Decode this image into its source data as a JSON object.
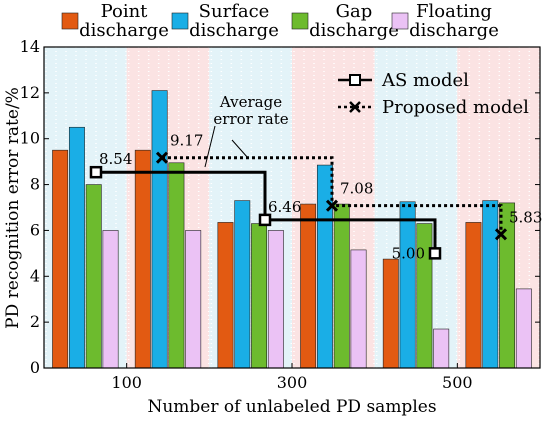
{
  "chart_data": {
    "type": "bar",
    "xlabel": "Number of unlabeled PD samples",
    "ylabel": "PD recognition error rate/%",
    "ylim": [
      0,
      14
    ],
    "yticks": [
      0,
      2,
      4,
      6,
      8,
      10,
      12,
      14
    ],
    "groups": [
      "100",
      "300",
      "500"
    ],
    "grid": false,
    "bar_legend_placement": "top",
    "line_legend_placement": "top-right",
    "bar_series": [
      {
        "name": "Point discharge",
        "name_lines": [
          "Point",
          "discharge"
        ],
        "color": "#e25a12",
        "values": [
          [
            9.5,
            9.5
          ],
          [
            6.35,
            7.15
          ],
          [
            4.75,
            6.35
          ]
        ]
      },
      {
        "name": "Surface discharge",
        "name_lines": [
          "Surface",
          "discharge"
        ],
        "color": "#1aaee6",
        "values": [
          [
            10.5,
            12.1
          ],
          [
            7.3,
            8.85
          ],
          [
            7.25,
            7.3
          ]
        ]
      },
      {
        "name": "Gap discharge",
        "name_lines": [
          "Gap",
          "discharge"
        ],
        "color": "#6dbb2e",
        "values": [
          [
            8.0,
            8.95
          ],
          [
            6.3,
            7.15
          ],
          [
            6.3,
            7.2
          ]
        ]
      },
      {
        "name": "Floating discharge",
        "name_lines": [
          "Floating",
          "discharge"
        ],
        "color": "#ebc2f5",
        "values": [
          [
            6.0,
            6.0
          ],
          [
            6.0,
            5.15
          ],
          [
            1.7,
            3.45
          ]
        ]
      }
    ],
    "line_series": [
      {
        "name": "AS model",
        "marker": "square",
        "style": "solid",
        "values": [
          8.54,
          6.46,
          5.0
        ],
        "labels": [
          "8.54",
          "6.46",
          "5.00"
        ]
      },
      {
        "name": "Proposed model",
        "marker": "x",
        "style": "dotted",
        "values": [
          9.17,
          7.08,
          5.83
        ],
        "labels": [
          "9.17",
          "7.08",
          "5.83"
        ]
      }
    ],
    "annotation": {
      "lines": [
        "Average",
        "error rate"
      ]
    },
    "background_bands": [
      "#e3f3f8",
      "#fbe3e3"
    ]
  }
}
